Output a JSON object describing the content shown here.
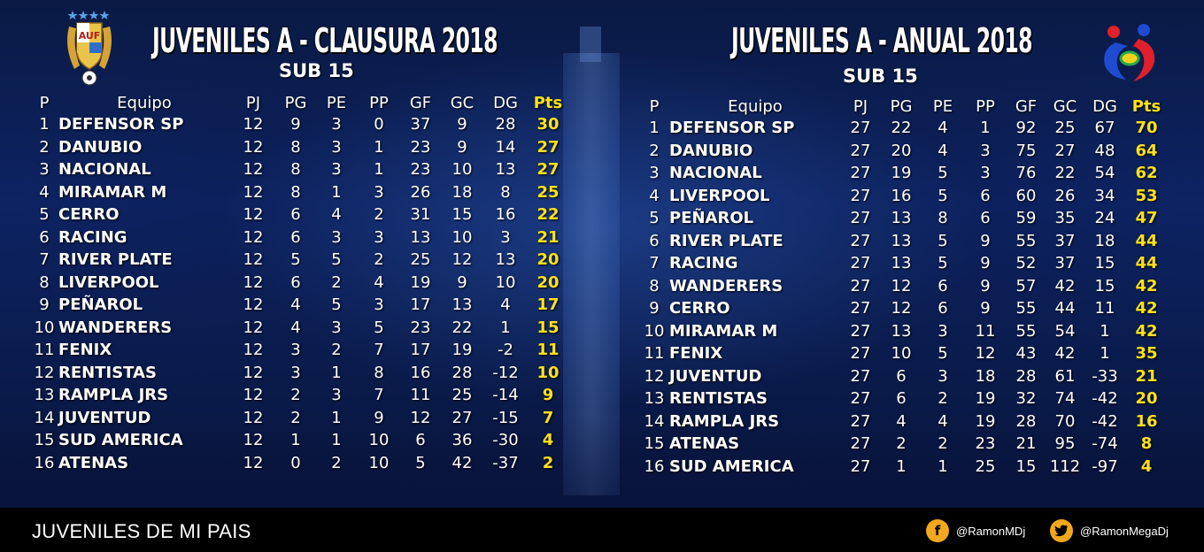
{
  "colors": {
    "points": "#ffe21a",
    "footer_bg": "#000000",
    "social_icon": "#f2a81d"
  },
  "left_logo": {
    "text": "AUF"
  },
  "left": {
    "title": "JUVENILES  A - CLAUSURA 2018",
    "subtitle": "SUB 15",
    "headers": [
      "P",
      "Equipo",
      "PJ",
      "PG",
      "PE",
      "PP",
      "GF",
      "GC",
      "DG",
      "Pts"
    ],
    "rows": [
      [
        "1",
        "DEFENSOR SP",
        "12",
        "9",
        "3",
        "0",
        "37",
        "9",
        "28",
        "30"
      ],
      [
        "2",
        "DANUBIO",
        "12",
        "8",
        "3",
        "1",
        "23",
        "9",
        "14",
        "27"
      ],
      [
        "3",
        "NACIONAL",
        "12",
        "8",
        "3",
        "1",
        "23",
        "10",
        "13",
        "27"
      ],
      [
        "4",
        "MIRAMAR M",
        "12",
        "8",
        "1",
        "3",
        "26",
        "18",
        "8",
        "25"
      ],
      [
        "5",
        "CERRO",
        "12",
        "6",
        "4",
        "2",
        "31",
        "15",
        "16",
        "22"
      ],
      [
        "6",
        "RACING",
        "12",
        "6",
        "3",
        "3",
        "13",
        "10",
        "3",
        "21"
      ],
      [
        "7",
        "RIVER PLATE",
        "12",
        "5",
        "5",
        "2",
        "25",
        "12",
        "13",
        "20"
      ],
      [
        "8",
        "LIVERPOOL",
        "12",
        "6",
        "2",
        "4",
        "19",
        "9",
        "10",
        "20"
      ],
      [
        "9",
        "PEÑAROL",
        "12",
        "4",
        "5",
        "3",
        "17",
        "13",
        "4",
        "17"
      ],
      [
        "10",
        "WANDERERS",
        "12",
        "4",
        "3",
        "5",
        "23",
        "22",
        "1",
        "15"
      ],
      [
        "11",
        "FENIX",
        "12",
        "3",
        "2",
        "7",
        "17",
        "19",
        "-2",
        "11"
      ],
      [
        "12",
        "RENTISTAS",
        "12",
        "3",
        "1",
        "8",
        "16",
        "28",
        "-12",
        "10"
      ],
      [
        "13",
        "RAMPLA JRS",
        "12",
        "2",
        "3",
        "7",
        "11",
        "25",
        "-14",
        "9"
      ],
      [
        "14",
        "JUVENTUD",
        "12",
        "2",
        "1",
        "9",
        "12",
        "27",
        "-15",
        "7"
      ],
      [
        "15",
        "SUD AMERICA",
        "12",
        "1",
        "1",
        "10",
        "6",
        "36",
        "-30",
        "4"
      ],
      [
        "16",
        "ATENAS",
        "12",
        "0",
        "2",
        "10",
        "5",
        "42",
        "-37",
        "2"
      ]
    ]
  },
  "right": {
    "title": "JUVENILES  A - ANUAL 2018",
    "subtitle": "SUB 15",
    "headers": [
      "P",
      "Equipo",
      "PJ",
      "PG",
      "PE",
      "PP",
      "GF",
      "GC",
      "DG",
      "Pts"
    ],
    "rows": [
      [
        "1",
        "DEFENSOR SP",
        "27",
        "22",
        "4",
        "1",
        "92",
        "25",
        "67",
        "70"
      ],
      [
        "2",
        "DANUBIO",
        "27",
        "20",
        "4",
        "3",
        "75",
        "27",
        "48",
        "64"
      ],
      [
        "3",
        "NACIONAL",
        "27",
        "19",
        "5",
        "3",
        "76",
        "22",
        "54",
        "62"
      ],
      [
        "4",
        "LIVERPOOL",
        "27",
        "16",
        "5",
        "6",
        "60",
        "26",
        "34",
        "53"
      ],
      [
        "5",
        "PEÑAROL",
        "27",
        "13",
        "8",
        "6",
        "59",
        "35",
        "24",
        "47"
      ],
      [
        "6",
        "RIVER PLATE",
        "27",
        "13",
        "5",
        "9",
        "55",
        "37",
        "18",
        "44"
      ],
      [
        "7",
        "RACING",
        "27",
        "13",
        "5",
        "9",
        "52",
        "37",
        "15",
        "44"
      ],
      [
        "8",
        "WANDERERS",
        "27",
        "12",
        "6",
        "9",
        "57",
        "42",
        "15",
        "42"
      ],
      [
        "9",
        "CERRO",
        "27",
        "12",
        "6",
        "9",
        "55",
        "44",
        "11",
        "42"
      ],
      [
        "10",
        "MIRAMAR M",
        "27",
        "13",
        "3",
        "11",
        "55",
        "54",
        "1",
        "42"
      ],
      [
        "11",
        "FENIX",
        "27",
        "10",
        "5",
        "12",
        "43",
        "42",
        "1",
        "35"
      ],
      [
        "12",
        "JUVENTUD",
        "27",
        "6",
        "3",
        "18",
        "28",
        "61",
        "-33",
        "21"
      ],
      [
        "13",
        "RENTISTAS",
        "27",
        "6",
        "2",
        "19",
        "32",
        "74",
        "-42",
        "20"
      ],
      [
        "14",
        "RAMPLA JRS",
        "27",
        "4",
        "4",
        "19",
        "28",
        "70",
        "-42",
        "16"
      ],
      [
        "15",
        "ATENAS",
        "27",
        "2",
        "2",
        "23",
        "21",
        "95",
        "-74",
        "8"
      ],
      [
        "16",
        "SUD AMERICA",
        "27",
        "1",
        "1",
        "25",
        "15",
        "112",
        "-97",
        "4"
      ]
    ]
  },
  "footer": {
    "title": "JUVENILES DE MI PAIS",
    "facebook": {
      "icon": "facebook-icon",
      "handle": "@RamonMDj"
    },
    "twitter": {
      "icon": "twitter-icon",
      "handle": "@RamonMegaDj"
    }
  }
}
